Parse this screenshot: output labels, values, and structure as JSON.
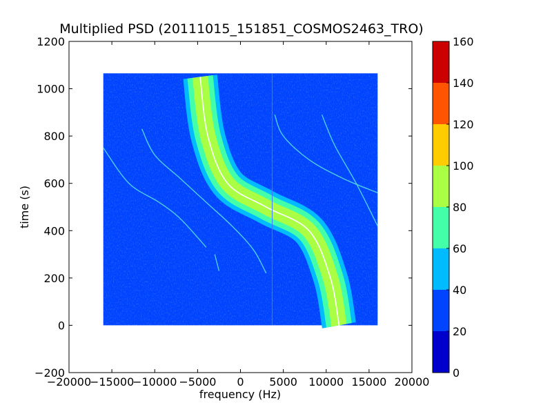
{
  "chart_data": {
    "type": "heatmap",
    "title": "Multiplied PSD (20111015_151851_COSMOS2463_TRO)",
    "xlabel": "frequency (Hz)",
    "ylabel": "time (s)",
    "xlim": [
      -20000,
      20000
    ],
    "ylim": [
      -200,
      1200
    ],
    "x_ticks": [
      -20000,
      -15000,
      -10000,
      -5000,
      0,
      5000,
      10000,
      15000,
      20000
    ],
    "y_ticks": [
      -200,
      0,
      200,
      400,
      600,
      800,
      1000,
      1200
    ],
    "data_extent": {
      "x": [
        -16000,
        16000
      ],
      "y": [
        0,
        1065
      ]
    },
    "colorbar": {
      "range": [
        0,
        160
      ],
      "ticks": [
        0,
        20,
        40,
        60,
        80,
        100,
        120,
        140,
        160
      ],
      "levels": [
        {
          "from": 0,
          "to": 20,
          "color": "#0000cc"
        },
        {
          "from": 20,
          "to": 40,
          "color": "#0044ff"
        },
        {
          "from": 40,
          "to": 60,
          "color": "#00bbff"
        },
        {
          "from": 60,
          "to": 80,
          "color": "#44ffaa"
        },
        {
          "from": 80,
          "to": 100,
          "color": "#aaff44"
        },
        {
          "from": 100,
          "to": 120,
          "color": "#ffcc00"
        },
        {
          "from": 120,
          "to": 140,
          "color": "#ff5500"
        },
        {
          "from": 140,
          "to": 160,
          "color": "#cc0000"
        }
      ]
    },
    "background_level": 30,
    "main_trace": {
      "description_points": [
        [
          11500,
          0
        ],
        [
          10500,
          200
        ],
        [
          8000,
          400
        ],
        [
          3000,
          500
        ],
        [
          -1500,
          600
        ],
        [
          -3800,
          800
        ],
        [
          -4700,
          1050
        ]
      ],
      "bands": [
        {
          "halfwidth_hz": 2000,
          "level": 50
        },
        {
          "halfwidth_hz": 1500,
          "level": 70
        },
        {
          "halfwidth_hz": 900,
          "level": 90
        },
        {
          "halfwidth_hz": 0,
          "level": 110
        }
      ]
    },
    "faint_traces": [
      {
        "points": [
          [
            -16000,
            750
          ],
          [
            -13000,
            600
          ],
          [
            -9500,
            520
          ],
          [
            -7000,
            450
          ],
          [
            -4000,
            330
          ]
        ]
      },
      {
        "points": [
          [
            -11500,
            830
          ],
          [
            -10000,
            720
          ],
          [
            -7000,
            620
          ],
          [
            -4000,
            520
          ],
          [
            -1000,
            420
          ],
          [
            1500,
            320
          ],
          [
            3000,
            220
          ]
        ]
      },
      {
        "points": [
          [
            4000,
            890
          ],
          [
            5000,
            800
          ],
          [
            8000,
            700
          ],
          [
            12000,
            620
          ],
          [
            16000,
            560
          ]
        ]
      },
      {
        "points": [
          [
            9500,
            890
          ],
          [
            11000,
            760
          ],
          [
            13500,
            600
          ],
          [
            16000,
            420
          ]
        ]
      },
      {
        "points": [
          [
            -3000,
            300
          ],
          [
            -2500,
            230
          ]
        ]
      }
    ],
    "vertical_line_hz": 3700
  }
}
